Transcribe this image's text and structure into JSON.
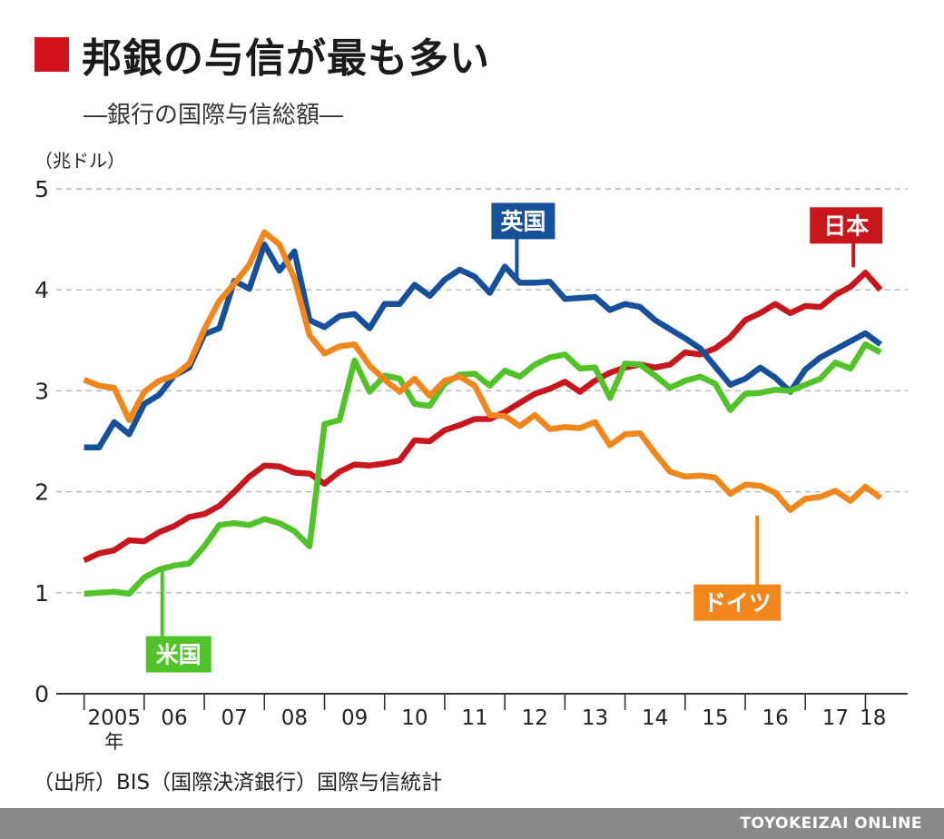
{
  "header": {
    "title": "邦銀の与信が最も多い",
    "subtitle": "―銀行の国際与信総額―"
  },
  "source": "（出所）BIS（国際決済銀行）国際与信統計",
  "footer": "TOYOKEIZAI ONLINE",
  "colors": {
    "accent": "#d0121b",
    "footer_bg": "#8a8a8a",
    "grid": "#b5b5b5"
  },
  "chart_data": {
    "type": "line",
    "ylabel": "（兆ドル）",
    "ylim": [
      0,
      5
    ],
    "yticks": [
      0,
      1,
      2,
      3,
      4,
      5
    ],
    "grid": true,
    "x_tick_labels": [
      "2005",
      "06",
      "07",
      "08",
      "09",
      "10",
      "11",
      "12",
      "13",
      "14",
      "15",
      "16",
      "17",
      "18"
    ],
    "x_tick_sublabel": "年",
    "x_range": [
      2004.96,
      2018.25
    ],
    "series": [
      {
        "name": "日本",
        "color": "#c8161d",
        "label_point": [
          2017.8,
          4.17
        ],
        "points": [
          [
            2005.0,
            1.32
          ],
          [
            2005.25,
            1.39
          ],
          [
            2005.5,
            1.42
          ],
          [
            2005.75,
            1.52
          ],
          [
            2006.0,
            1.51
          ],
          [
            2006.25,
            1.6
          ],
          [
            2006.5,
            1.66
          ],
          [
            2006.75,
            1.75
          ],
          [
            2007.0,
            1.78
          ],
          [
            2007.25,
            1.86
          ],
          [
            2007.5,
            2.0
          ],
          [
            2007.75,
            2.15
          ],
          [
            2008.0,
            2.26
          ],
          [
            2008.25,
            2.25
          ],
          [
            2008.5,
            2.19
          ],
          [
            2008.75,
            2.18
          ],
          [
            2009.0,
            2.08
          ],
          [
            2009.25,
            2.2
          ],
          [
            2009.5,
            2.27
          ],
          [
            2009.75,
            2.26
          ],
          [
            2010.0,
            2.28
          ],
          [
            2010.25,
            2.31
          ],
          [
            2010.5,
            2.51
          ],
          [
            2010.75,
            2.5
          ],
          [
            2011.0,
            2.61
          ],
          [
            2011.25,
            2.66
          ],
          [
            2011.5,
            2.72
          ],
          [
            2011.75,
            2.72
          ],
          [
            2012.0,
            2.79
          ],
          [
            2012.25,
            2.88
          ],
          [
            2012.5,
            2.97
          ],
          [
            2012.75,
            3.02
          ],
          [
            2013.0,
            3.09
          ],
          [
            2013.25,
            2.99
          ],
          [
            2013.5,
            3.1
          ],
          [
            2013.75,
            3.18
          ],
          [
            2014.0,
            3.23
          ],
          [
            2014.25,
            3.26
          ],
          [
            2014.5,
            3.23
          ],
          [
            2014.75,
            3.26
          ],
          [
            2015.0,
            3.38
          ],
          [
            2015.25,
            3.36
          ],
          [
            2015.5,
            3.42
          ],
          [
            2015.75,
            3.53
          ],
          [
            2016.0,
            3.7
          ],
          [
            2016.25,
            3.77
          ],
          [
            2016.5,
            3.86
          ],
          [
            2016.75,
            3.77
          ],
          [
            2017.0,
            3.84
          ],
          [
            2017.25,
            3.83
          ],
          [
            2017.5,
            3.95
          ],
          [
            2017.75,
            4.03
          ],
          [
            2018.0,
            4.17
          ],
          [
            2018.25,
            4.0
          ]
        ]
      },
      {
        "name": "英国",
        "color": "#16509a",
        "label_point": [
          2012.2,
          4.07
        ],
        "points": [
          [
            2005.0,
            2.44
          ],
          [
            2005.25,
            2.44
          ],
          [
            2005.5,
            2.69
          ],
          [
            2005.75,
            2.57
          ],
          [
            2006.0,
            2.87
          ],
          [
            2006.25,
            2.96
          ],
          [
            2006.5,
            3.15
          ],
          [
            2006.75,
            3.23
          ],
          [
            2007.0,
            3.56
          ],
          [
            2007.25,
            3.62
          ],
          [
            2007.5,
            4.09
          ],
          [
            2007.75,
            4.01
          ],
          [
            2008.0,
            4.45
          ],
          [
            2008.25,
            4.19
          ],
          [
            2008.5,
            4.38
          ],
          [
            2008.75,
            3.7
          ],
          [
            2009.0,
            3.63
          ],
          [
            2009.25,
            3.74
          ],
          [
            2009.5,
            3.76
          ],
          [
            2009.75,
            3.62
          ],
          [
            2010.0,
            3.86
          ],
          [
            2010.25,
            3.86
          ],
          [
            2010.5,
            4.05
          ],
          [
            2010.75,
            3.94
          ],
          [
            2011.0,
            4.1
          ],
          [
            2011.25,
            4.2
          ],
          [
            2011.5,
            4.13
          ],
          [
            2011.75,
            3.97
          ],
          [
            2012.0,
            4.23
          ],
          [
            2012.25,
            4.07
          ],
          [
            2012.5,
            4.07
          ],
          [
            2012.75,
            4.08
          ],
          [
            2013.0,
            3.91
          ],
          [
            2013.25,
            3.92
          ],
          [
            2013.5,
            3.93
          ],
          [
            2013.75,
            3.8
          ],
          [
            2014.0,
            3.86
          ],
          [
            2014.25,
            3.83
          ],
          [
            2014.5,
            3.7
          ],
          [
            2014.75,
            3.61
          ],
          [
            2015.0,
            3.52
          ],
          [
            2015.25,
            3.42
          ],
          [
            2015.5,
            3.24
          ],
          [
            2015.75,
            3.06
          ],
          [
            2016.0,
            3.12
          ],
          [
            2016.25,
            3.23
          ],
          [
            2016.5,
            3.13
          ],
          [
            2016.75,
            2.99
          ],
          [
            2017.0,
            3.21
          ],
          [
            2017.25,
            3.33
          ],
          [
            2017.5,
            3.41
          ],
          [
            2017.75,
            3.49
          ],
          [
            2018.0,
            3.57
          ],
          [
            2018.25,
            3.46
          ]
        ]
      },
      {
        "name": "米国",
        "color": "#52c229",
        "label_point": [
          2006.3,
          1.29
        ],
        "points": [
          [
            2005.0,
            0.99
          ],
          [
            2005.25,
            1.0
          ],
          [
            2005.5,
            1.01
          ],
          [
            2005.75,
            0.99
          ],
          [
            2006.0,
            1.15
          ],
          [
            2006.25,
            1.23
          ],
          [
            2006.5,
            1.27
          ],
          [
            2006.75,
            1.29
          ],
          [
            2007.0,
            1.46
          ],
          [
            2007.25,
            1.67
          ],
          [
            2007.5,
            1.69
          ],
          [
            2007.75,
            1.67
          ],
          [
            2008.0,
            1.73
          ],
          [
            2008.25,
            1.69
          ],
          [
            2008.5,
            1.61
          ],
          [
            2008.75,
            1.46
          ],
          [
            2009.0,
            2.67
          ],
          [
            2009.25,
            2.71
          ],
          [
            2009.5,
            3.3
          ],
          [
            2009.75,
            2.99
          ],
          [
            2010.0,
            3.15
          ],
          [
            2010.25,
            3.12
          ],
          [
            2010.5,
            2.87
          ],
          [
            2010.75,
            2.85
          ],
          [
            2011.0,
            3.07
          ],
          [
            2011.25,
            3.16
          ],
          [
            2011.5,
            3.17
          ],
          [
            2011.75,
            3.05
          ],
          [
            2012.0,
            3.2
          ],
          [
            2012.25,
            3.14
          ],
          [
            2012.5,
            3.26
          ],
          [
            2012.75,
            3.33
          ],
          [
            2013.0,
            3.36
          ],
          [
            2013.25,
            3.22
          ],
          [
            2013.5,
            3.23
          ],
          [
            2013.75,
            2.93
          ],
          [
            2014.0,
            3.27
          ],
          [
            2014.25,
            3.26
          ],
          [
            2014.5,
            3.15
          ],
          [
            2014.75,
            3.03
          ],
          [
            2015.0,
            3.1
          ],
          [
            2015.25,
            3.14
          ],
          [
            2015.5,
            3.07
          ],
          [
            2015.75,
            2.81
          ],
          [
            2016.0,
            2.97
          ],
          [
            2016.25,
            2.98
          ],
          [
            2016.5,
            3.01
          ],
          [
            2016.75,
            3.0
          ],
          [
            2017.0,
            3.06
          ],
          [
            2017.25,
            3.12
          ],
          [
            2017.5,
            3.28
          ],
          [
            2017.75,
            3.22
          ],
          [
            2018.0,
            3.46
          ],
          [
            2018.25,
            3.38
          ]
        ]
      },
      {
        "name": "ドイツ",
        "color": "#f0861c",
        "label_point": [
          2016.2,
          1.82
        ],
        "points": [
          [
            2005.0,
            3.11
          ],
          [
            2005.25,
            3.05
          ],
          [
            2005.5,
            3.03
          ],
          [
            2005.75,
            2.71
          ],
          [
            2006.0,
            2.99
          ],
          [
            2006.25,
            3.1
          ],
          [
            2006.5,
            3.15
          ],
          [
            2006.75,
            3.27
          ],
          [
            2007.0,
            3.61
          ],
          [
            2007.25,
            3.89
          ],
          [
            2007.5,
            4.06
          ],
          [
            2007.75,
            4.25
          ],
          [
            2008.0,
            4.57
          ],
          [
            2008.25,
            4.45
          ],
          [
            2008.5,
            4.11
          ],
          [
            2008.75,
            3.55
          ],
          [
            2009.0,
            3.37
          ],
          [
            2009.25,
            3.44
          ],
          [
            2009.5,
            3.46
          ],
          [
            2009.75,
            3.25
          ],
          [
            2010.0,
            3.11
          ],
          [
            2010.25,
            2.99
          ],
          [
            2010.5,
            3.12
          ],
          [
            2010.75,
            2.95
          ],
          [
            2011.0,
            3.1
          ],
          [
            2011.25,
            3.14
          ],
          [
            2011.5,
            3.05
          ],
          [
            2011.75,
            2.76
          ],
          [
            2012.0,
            2.75
          ],
          [
            2012.25,
            2.65
          ],
          [
            2012.5,
            2.76
          ],
          [
            2012.75,
            2.62
          ],
          [
            2013.0,
            2.64
          ],
          [
            2013.25,
            2.63
          ],
          [
            2013.5,
            2.69
          ],
          [
            2013.75,
            2.46
          ],
          [
            2014.0,
            2.57
          ],
          [
            2014.25,
            2.58
          ],
          [
            2014.5,
            2.38
          ],
          [
            2014.75,
            2.2
          ],
          [
            2015.0,
            2.15
          ],
          [
            2015.25,
            2.16
          ],
          [
            2015.5,
            2.14
          ],
          [
            2015.75,
            1.98
          ],
          [
            2016.0,
            2.07
          ],
          [
            2016.25,
            2.06
          ],
          [
            2016.5,
            1.99
          ],
          [
            2016.75,
            1.82
          ],
          [
            2017.0,
            1.93
          ],
          [
            2017.25,
            1.95
          ],
          [
            2017.5,
            2.01
          ],
          [
            2017.75,
            1.91
          ],
          [
            2018.0,
            2.05
          ],
          [
            2018.25,
            1.94
          ]
        ]
      }
    ]
  }
}
